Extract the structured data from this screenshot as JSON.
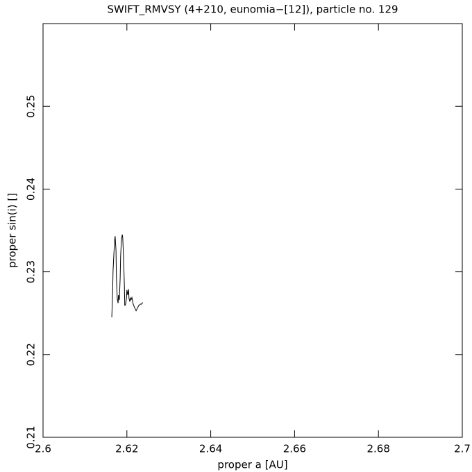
{
  "chart_data": {
    "type": "line",
    "title": "SWIFT_RMVSY (4+210, eunomia−[12]), particle no. 129",
    "x_label": "proper a [AU]",
    "y_label": "proper sin(i) []",
    "xlim": [
      2.6,
      2.7
    ],
    "xticks": [
      2.6,
      2.62,
      2.64,
      2.66,
      2.68,
      2.7
    ],
    "ylim": [
      0.21,
      0.26
    ],
    "yticks": [
      0.21,
      0.22,
      0.23,
      0.24,
      0.25
    ],
    "color": "#000000",
    "x": [
      2.6164,
      2.6166,
      2.6167,
      2.6169,
      2.6171,
      2.6172,
      2.6174,
      2.6175,
      2.6177,
      2.6179,
      2.618,
      2.6182,
      2.6184,
      2.6185,
      2.6187,
      2.6189,
      2.619,
      2.6192,
      2.6194,
      2.6195,
      2.6197,
      2.6199,
      2.62,
      2.6202,
      2.6204,
      2.6205,
      2.6207,
      2.6209,
      2.621,
      2.6212,
      2.6215,
      2.6219,
      2.6222,
      2.6225,
      2.6228,
      2.6232,
      2.6235,
      2.6238
    ],
    "values": [
      0.2245,
      0.2276,
      0.2301,
      0.2322,
      0.2339,
      0.2343,
      0.2326,
      0.2293,
      0.2268,
      0.2262,
      0.2272,
      0.2266,
      0.2293,
      0.2318,
      0.2339,
      0.2345,
      0.2342,
      0.2318,
      0.2284,
      0.2259,
      0.2261,
      0.2268,
      0.2278,
      0.2272,
      0.2279,
      0.2268,
      0.2264,
      0.2269,
      0.2266,
      0.2269,
      0.2261,
      0.2256,
      0.2253,
      0.2256,
      0.2259,
      0.2261,
      0.2261,
      0.2263
    ]
  }
}
